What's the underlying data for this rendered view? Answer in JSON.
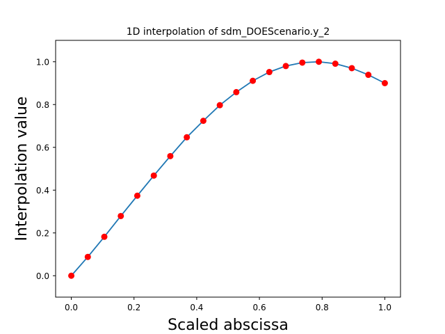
{
  "chart_data": {
    "type": "line",
    "title": "1D interpolation of sdm_DOEScenario.y_2",
    "xlabel": "Scaled abscissa",
    "ylabel": "Interpolation value",
    "xlim": [
      -0.05,
      1.05
    ],
    "ylim": [
      -0.1,
      1.1
    ],
    "xticks": [
      0.0,
      0.2,
      0.4,
      0.6,
      0.8,
      1.0
    ],
    "xtick_labels": [
      "0.0",
      "0.2",
      "0.4",
      "0.6",
      "0.8",
      "1.0"
    ],
    "yticks": [
      0.0,
      0.2,
      0.4,
      0.6,
      0.8,
      1.0
    ],
    "ytick_labels": [
      "0.0",
      "0.2",
      "0.4",
      "0.6",
      "0.8",
      "1.0"
    ],
    "grid": false,
    "legend": "none",
    "series": [
      {
        "kind": "line",
        "color": "#1f77b4",
        "x": [
          0.0,
          0.0526,
          0.1053,
          0.1579,
          0.2105,
          0.2632,
          0.3158,
          0.3684,
          0.4211,
          0.4737,
          0.5263,
          0.5789,
          0.6316,
          0.6842,
          0.7368,
          0.7895,
          0.8421,
          0.8947,
          0.9474,
          1.0
        ],
        "y": [
          0.0,
          0.088,
          0.182,
          0.279,
          0.374,
          0.468,
          0.559,
          0.647,
          0.724,
          0.797,
          0.858,
          0.911,
          0.952,
          0.98,
          0.996,
          1.0,
          0.991,
          0.97,
          0.939,
          0.9
        ]
      },
      {
        "kind": "points",
        "color": "#ff0000",
        "x": [
          0.0,
          0.0526,
          0.1053,
          0.1579,
          0.2105,
          0.2632,
          0.3158,
          0.3684,
          0.4211,
          0.4737,
          0.5263,
          0.5789,
          0.6316,
          0.6842,
          0.7368,
          0.7895,
          0.8421,
          0.8947,
          0.9474,
          1.0
        ],
        "y": [
          0.0,
          0.088,
          0.182,
          0.279,
          0.374,
          0.468,
          0.559,
          0.647,
          0.724,
          0.797,
          0.858,
          0.911,
          0.952,
          0.98,
          0.996,
          1.0,
          0.991,
          0.97,
          0.939,
          0.9
        ]
      }
    ]
  }
}
